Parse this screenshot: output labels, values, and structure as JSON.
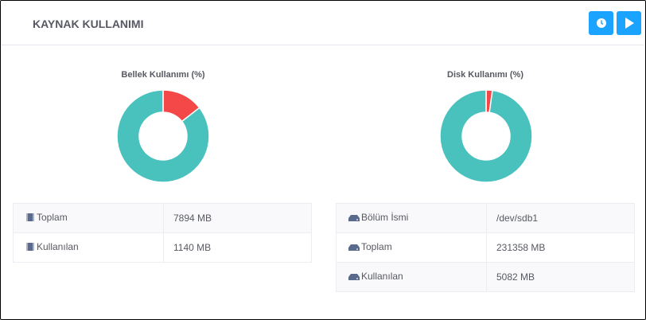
{
  "header": {
    "title": "KAYNAK KULLANIMI",
    "buttons": [
      {
        "icon": "clock-icon"
      },
      {
        "icon": "play-icon"
      }
    ]
  },
  "colors": {
    "used": "#f44848",
    "free": "#49c1bd",
    "accent": "#1aa3ff"
  },
  "memory": {
    "chart_title": "Bellek Kullanımı (%)",
    "used_percent": 14.44,
    "rows": [
      {
        "label": "Toplam",
        "value": "7894 MB",
        "icon": "memory-chip-icon"
      },
      {
        "label": "Kullanılan",
        "value": "1140 MB",
        "icon": "memory-chip-icon"
      }
    ]
  },
  "disk": {
    "chart_title": "Disk Kullanımı (%)",
    "used_percent": 2.2,
    "rows": [
      {
        "label": "Bölüm İsmi",
        "value": "/dev/sdb1",
        "icon": "hard-drive-icon"
      },
      {
        "label": "Toplam",
        "value": "231358 MB",
        "icon": "hard-drive-icon"
      },
      {
        "label": "Kullanılan",
        "value": "5082 MB",
        "icon": "hard-drive-icon"
      }
    ]
  }
}
